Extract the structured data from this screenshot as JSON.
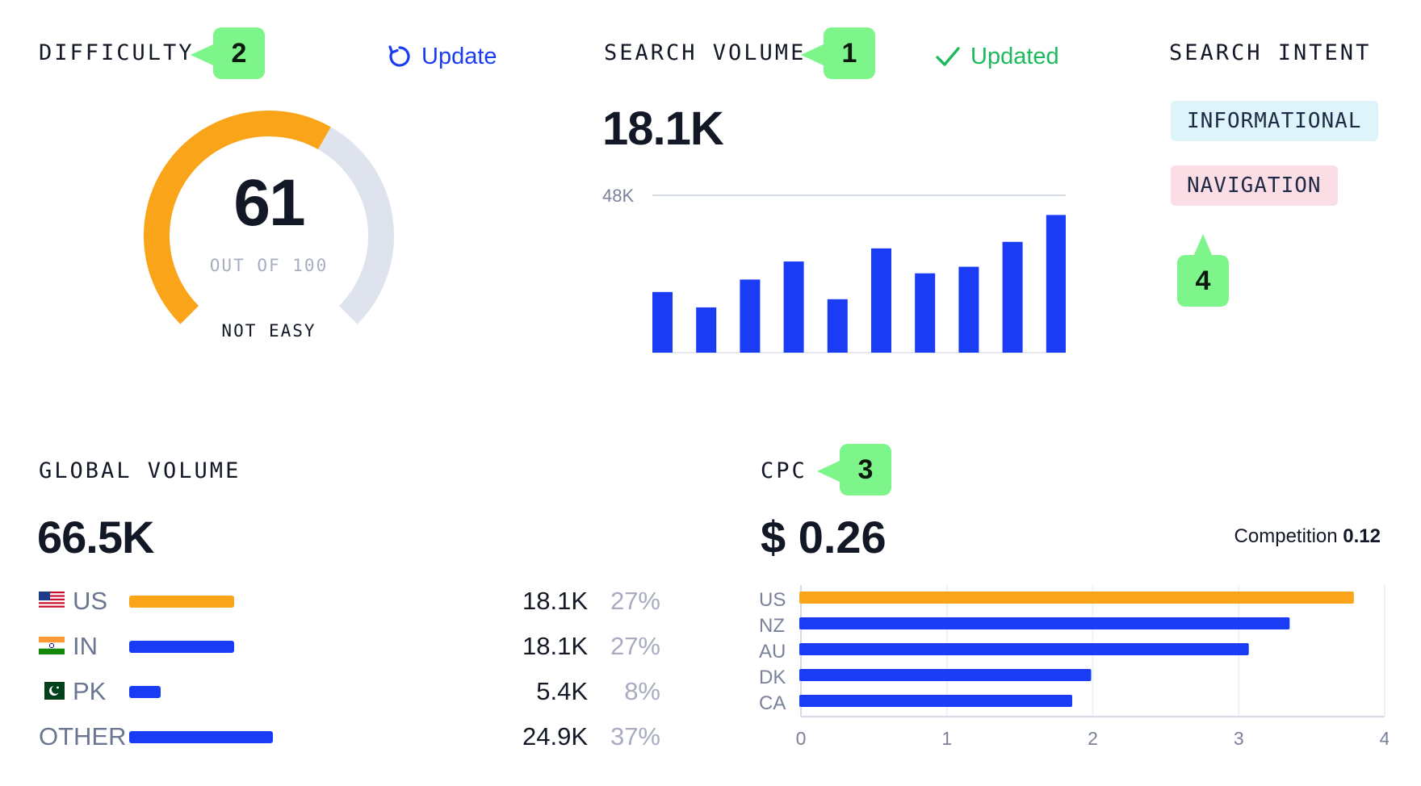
{
  "difficulty": {
    "title": "DIFFICULTY",
    "badge": "2",
    "update_label": "Update",
    "score": "61",
    "out_of": "OUT OF 100",
    "rating": "NOT EASY",
    "gauge_value": 61,
    "gauge_max": 100,
    "colors": {
      "fill": "#FAA41A",
      "track": "#DFE3EE"
    }
  },
  "search_volume": {
    "title": "SEARCH VOLUME",
    "badge": "1",
    "status": "Updated",
    "value": "18.1K",
    "axis_label": "48K",
    "colors": {
      "bar": "#1A3CF5",
      "status": "#1DBA5B"
    }
  },
  "search_intent": {
    "title": "SEARCH INTENT",
    "badge": "4",
    "tags": [
      {
        "label": "INFORMATIONAL",
        "bg": "#DDF4FB"
      },
      {
        "label": "NAVIGATION",
        "bg": "#FBDDE6"
      }
    ]
  },
  "global_volume": {
    "title": "GLOBAL VOLUME",
    "value": "66.5K",
    "rows": [
      {
        "code": "US",
        "flag": "us-flag-icon",
        "volume": "18.1K",
        "percent": "27%",
        "share": 27,
        "color": "#FAA41A"
      },
      {
        "code": "IN",
        "flag": "in-flag-icon",
        "volume": "18.1K",
        "percent": "27%",
        "share": 27,
        "color": "#1A3CF5"
      },
      {
        "code": "PK",
        "flag": "pk-flag-icon",
        "volume": "5.4K",
        "percent": "8%",
        "share": 8,
        "color": "#1A3CF5"
      },
      {
        "code": "OTHER",
        "flag": "",
        "volume": "24.9K",
        "percent": "37%",
        "share": 37,
        "color": "#1A3CF5"
      }
    ]
  },
  "cpc": {
    "title": "CPC",
    "badge": "3",
    "value": "$ 0.26",
    "competition_label": "Competition",
    "competition_value": "0.12"
  },
  "chart_data": [
    {
      "type": "bar",
      "categories": [
        "",
        "",
        "",
        "",
        "",
        "",
        "",
        "",
        "",
        ""
      ],
      "values": [
        18.5,
        13.8,
        22.3,
        27.8,
        16.3,
        31.8,
        24.2,
        26.2,
        33.8,
        42.0
      ],
      "xlabel": "",
      "ylabel": "",
      "ylim": [
        0,
        48
      ],
      "grid": true,
      "y_tick_labels": [
        "48K"
      ]
    },
    {
      "type": "bar",
      "orientation": "horizontal",
      "categories": [
        "US",
        "NZ",
        "AU",
        "DK",
        "CA"
      ],
      "values": [
        3.8,
        3.36,
        3.08,
        2.0,
        1.87
      ],
      "colors": [
        "#FAA41A",
        "#1A3CF5",
        "#1A3CF5",
        "#1A3CF5",
        "#1A3CF5"
      ],
      "xlabel": "",
      "ylabel": "",
      "xlim": [
        0,
        4
      ],
      "x_ticks": [
        "0",
        "1",
        "2",
        "3",
        "4"
      ],
      "grid": true
    }
  ]
}
